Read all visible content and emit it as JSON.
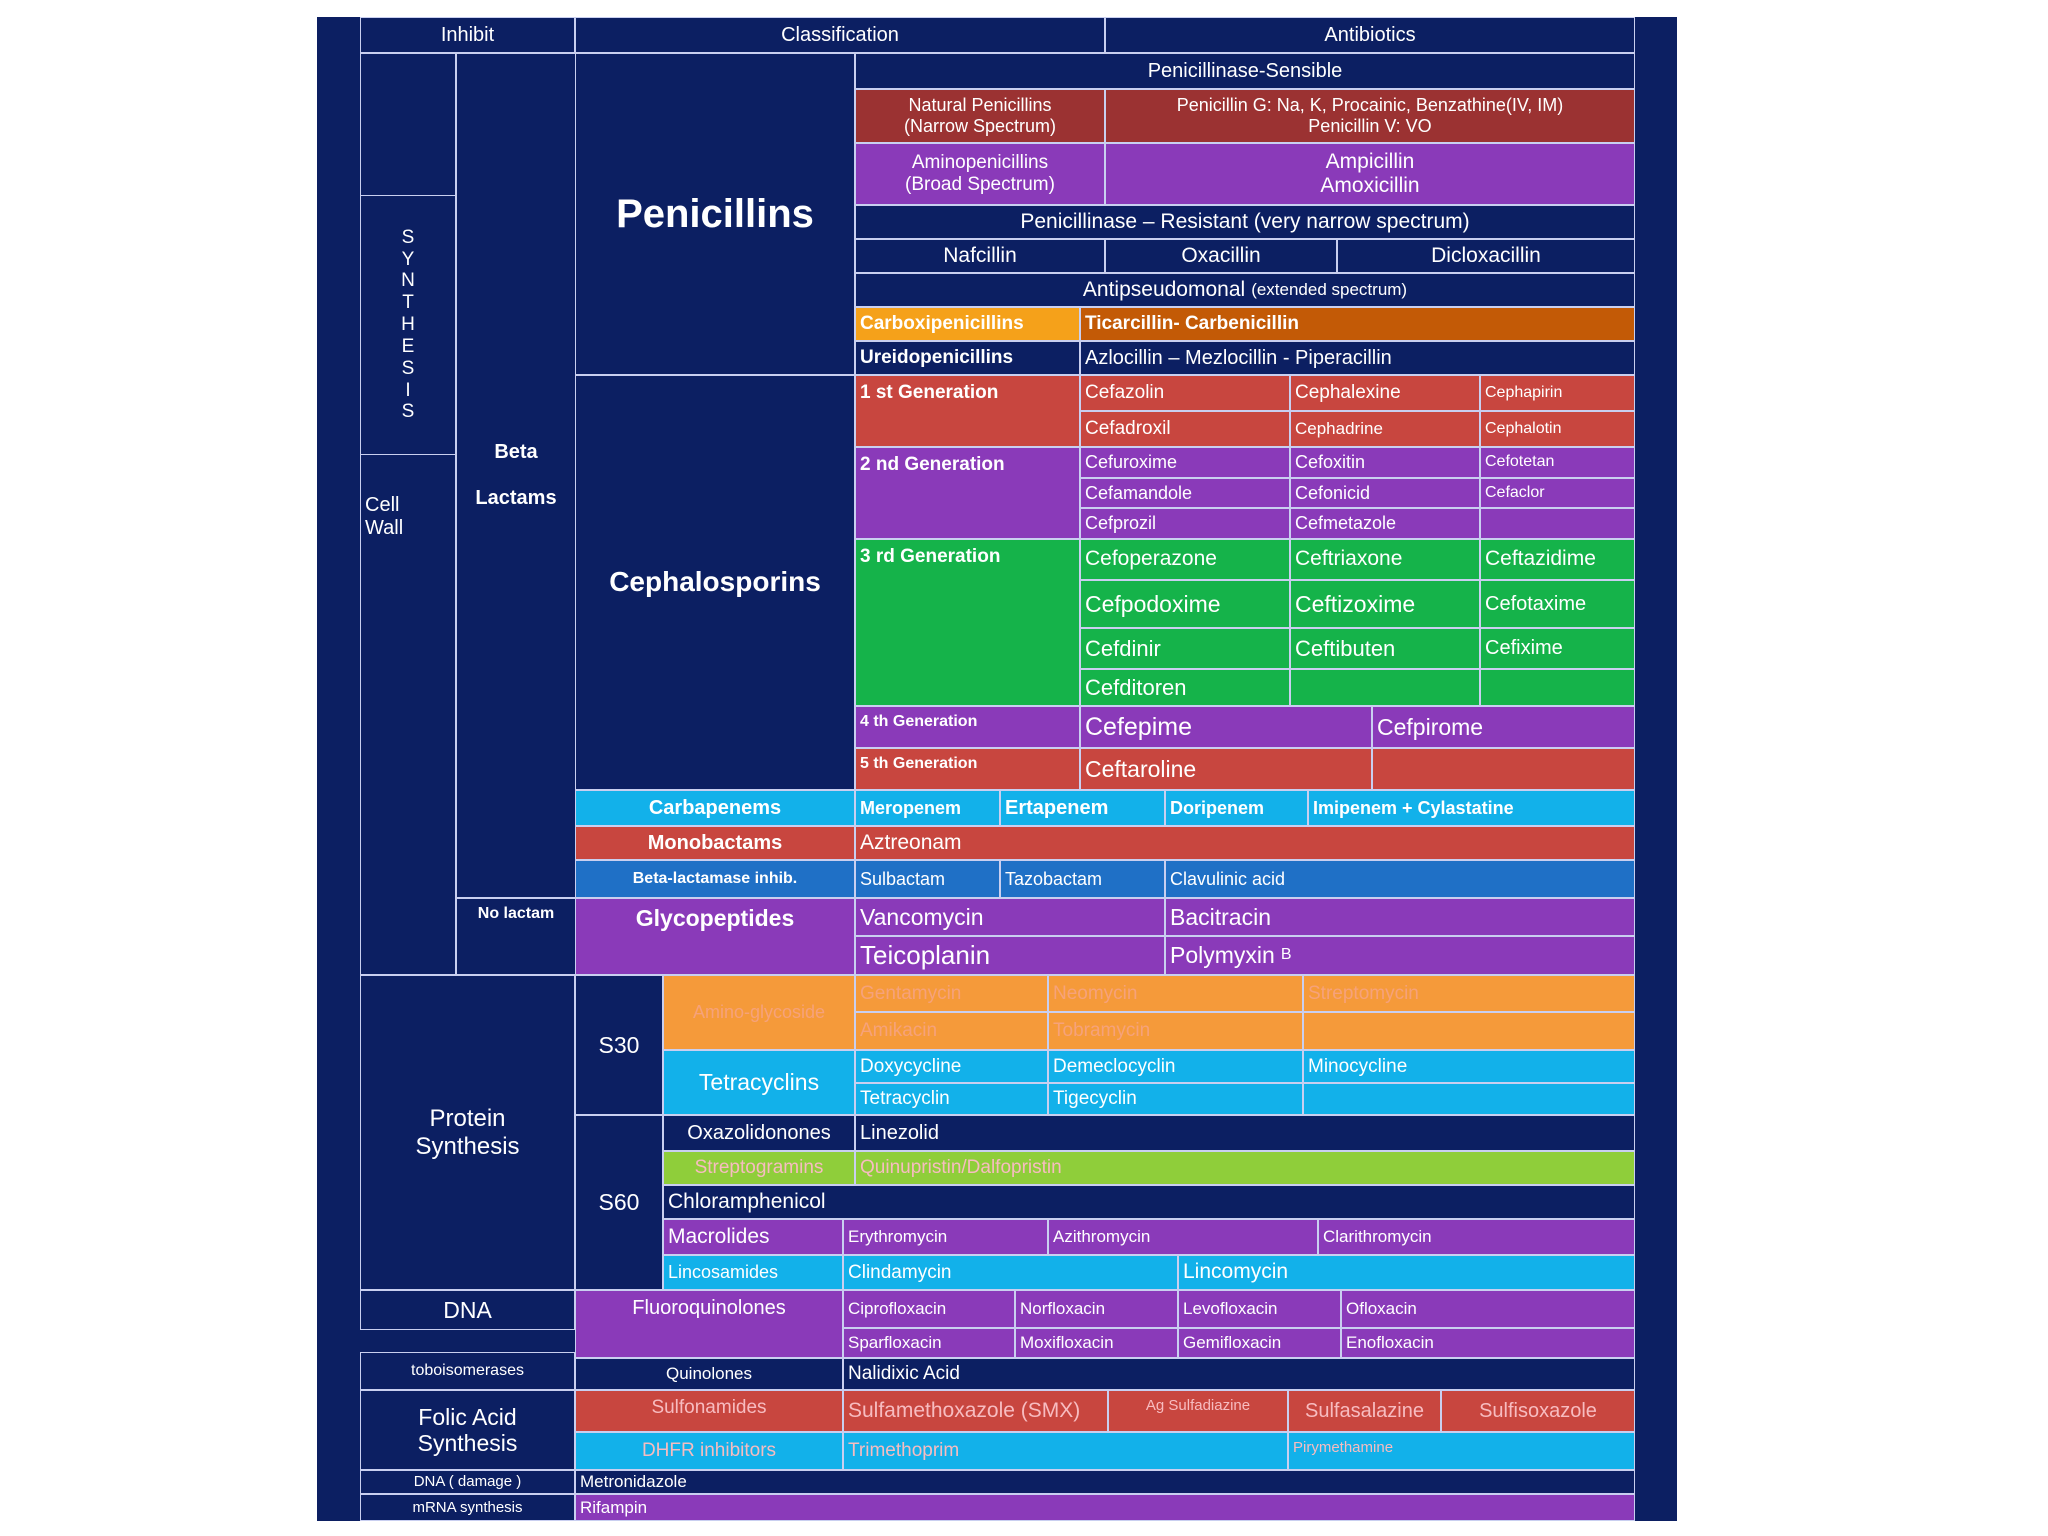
{
  "colors": {
    "background": "#0c1f62",
    "border": "#c9cff0",
    "red": "#c8463f",
    "dark_red": "#9b3232",
    "purple": "#8a3ab9",
    "green": "#15b34a",
    "cyan": "#12b1ea",
    "blue": "#1f70c6",
    "orange": "#f59a3a",
    "lime": "#8fce3a",
    "gold": "#f5a11a",
    "brown": "#c35a06",
    "salmon": "#f6a27a",
    "pink": "#f7bcc0"
  },
  "headers": {
    "inhibit": "Inhibit",
    "classification": "Classification",
    "antibiotics": "Antibiotics"
  },
  "inhibit": {
    "cell_wall": "Cell\nWall",
    "synthesis": "S\nY\nN\nT\nH\nE\nS\nI\nS",
    "protein": "Protein\nSynthesis",
    "dna": "DNA",
    "dna_sub": "toboisomerases",
    "folic": "Folic Acid\nSynthesis",
    "dna_damage": "DNA ( damage )",
    "mrna": "mRNA synthesis"
  },
  "sub": {
    "beta_lactams": "Beta\n\nLactams",
    "no_lactam": "No lactam",
    "s30": "S30",
    "s60": "S60"
  },
  "penicillins": {
    "label": "Penicillins",
    "sensible": "Penicillinase-Sensible",
    "natural": "Natural Penicillins\n(Narrow Spectrum)",
    "natural_drugs": "Penicillin G: Na, K, Procainic, Benzathine(IV, IM)\nPenicillin V: VO",
    "amino": "Aminopenicillins\n(Broad Spectrum)",
    "amino_drugs": "Ampicillin\nAmoxicillin",
    "resistant": "Penicillinase – Resistant (very narrow spectrum)",
    "nafcillin": "Nafcillin",
    "oxacillin": "Oxacillin",
    "dicloxacillin": "Dicloxacillin",
    "antipseudo": "Antipseudomonal",
    "antipseudo_note": "(extended spectrum)",
    "carboxi": "Carboxipenicillins",
    "carboxi_drugs": "Ticarcillin- Carbenicillin",
    "ureido": "Ureidopenicillins",
    "ureido_drugs": "Azlocillin – Mezlocillin - Piperacillin"
  },
  "cephalosporins": {
    "label": "Cephalosporins",
    "g1": "1 st Generation",
    "g1_drugs": [
      "Cefazolin",
      "Cephalexine",
      "Cephapirin",
      "Cefadroxil",
      "Cephadrine",
      "Cephalotin"
    ],
    "g2": "2 nd Generation",
    "g2_drugs": [
      "Cefuroxime",
      "Cefoxitin",
      "Cefotetan",
      "Cefamandole",
      "Cefonicid",
      "Cefaclor",
      "Cefprozil",
      "Cefmetazole"
    ],
    "g3": "3 rd Generation",
    "g3_drugs": [
      "Cefoperazone",
      "Ceftriaxone",
      "Ceftazidime",
      "Cefpodoxime",
      "Ceftizoxime",
      "Cefotaxime",
      "Cefdinir",
      "Ceftibuten",
      "Cefixime",
      "Cefditoren"
    ],
    "g4": "4 th Generation",
    "g4_drugs": [
      "Cefepime",
      "Cefpirome"
    ],
    "g5": "5 th Generation",
    "g5_drugs": [
      "Ceftaroline"
    ]
  },
  "carbapenems": {
    "label": "Carbapenems",
    "drugs": [
      "Meropenem",
      "Ertapenem",
      "Doripenem",
      "Imipenem + Cylastatine"
    ]
  },
  "monobactams": {
    "label": "Monobactams",
    "drugs": [
      "Aztreonam"
    ]
  },
  "bli": {
    "label": "Beta-lactamase inhib.",
    "drugs": [
      "Sulbactam",
      "Tazobactam",
      "Clavulinic acid"
    ]
  },
  "glyco": {
    "label": "Glycopeptides",
    "drugs": [
      "Vancomycin",
      "Bacitracin",
      "Teicoplanin",
      "Polymyxin"
    ],
    "polymyxin_suffix": "B"
  },
  "amino": {
    "label": "Amino-glycoside",
    "drugs": [
      "Gentamycin",
      "Neomycin",
      "Streptomycin",
      "Amikacin",
      "Tobramycin"
    ]
  },
  "tetra": {
    "label": "Tetracyclins",
    "drugs": [
      "Doxycycline",
      "Demeclocyclin",
      "Minocycline",
      "Tetracyclin",
      "Tigecyclin"
    ]
  },
  "oxazo": {
    "label": "Oxazolidonones",
    "drugs": [
      "Linezolid"
    ]
  },
  "strepto": {
    "label": "Streptogramins",
    "drugs": [
      "Quinupristin/Dalfopristin"
    ]
  },
  "chloram": {
    "label": "Chloramphenicol"
  },
  "macro": {
    "label": "Macrolides",
    "drugs": [
      "Erythromycin",
      "Azithromycin",
      "Clarithromycin"
    ]
  },
  "linco": {
    "label": "Lincosamides",
    "drugs": [
      "Clindamycin",
      "Lincomycin"
    ]
  },
  "fluoro": {
    "label": "Fluoroquinolones",
    "drugs": [
      "Ciprofloxacin",
      "Norfloxacin",
      "Levofloxacin",
      "Ofloxacin",
      "Sparfloxacin",
      "Moxifloxacin",
      "Gemifloxacin",
      "Enofloxacin"
    ]
  },
  "quino": {
    "label": "Quinolones",
    "drugs": [
      "Nalidixic Acid"
    ]
  },
  "sulfa": {
    "label": "Sulfonamides",
    "drugs": [
      "Sulfamethoxazole (SMX)",
      "Ag Sulfadiazine",
      "Sulfasalazine",
      "Sulfisoxazole"
    ]
  },
  "dhfr": {
    "label": "DHFR inhibitors",
    "drugs": [
      "Trimethoprim",
      "Pirymethamine"
    ]
  },
  "metro": {
    "drugs": [
      "Metronidazole"
    ]
  },
  "rifa": {
    "drugs": [
      "Rifampin"
    ]
  }
}
